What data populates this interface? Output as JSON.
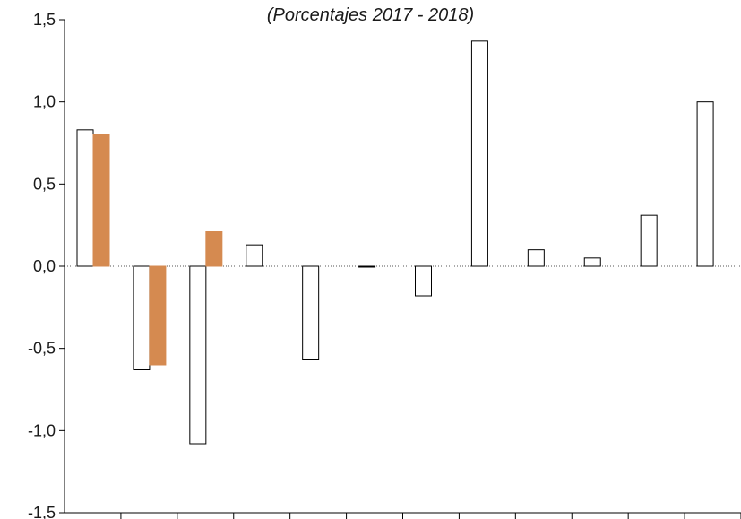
{
  "chart_data": {
    "type": "bar",
    "subtitle": "(Porcentajes 2017 - 2018)",
    "categories": [
      "",
      "",
      "",
      "",
      "",
      "",
      "",
      "",
      "",
      "",
      "",
      ""
    ],
    "series": [
      {
        "name": "",
        "color": "#ffffff",
        "stroke": "#000000",
        "values": [
          0.83,
          -0.63,
          -1.08,
          0.13,
          -0.57,
          -0.005,
          -0.18,
          1.37,
          0.1,
          0.05,
          0.31,
          1.0
        ]
      },
      {
        "name": "",
        "color": "#d58a50",
        "stroke": "#d58a50",
        "values": [
          0.8,
          -0.6,
          0.21,
          null,
          null,
          null,
          null,
          null,
          null,
          null,
          null,
          null
        ]
      }
    ],
    "y_ticks": [
      "1,5",
      "1,0",
      "0,5",
      "0,0",
      "-0,5",
      "-1,0",
      "-1,5"
    ],
    "y_tick_values": [
      1.5,
      1.0,
      0.5,
      0.0,
      -0.5,
      -1.0,
      -1.5
    ],
    "ylim": [
      -1.5,
      1.5
    ],
    "zero_line": "dotted"
  }
}
